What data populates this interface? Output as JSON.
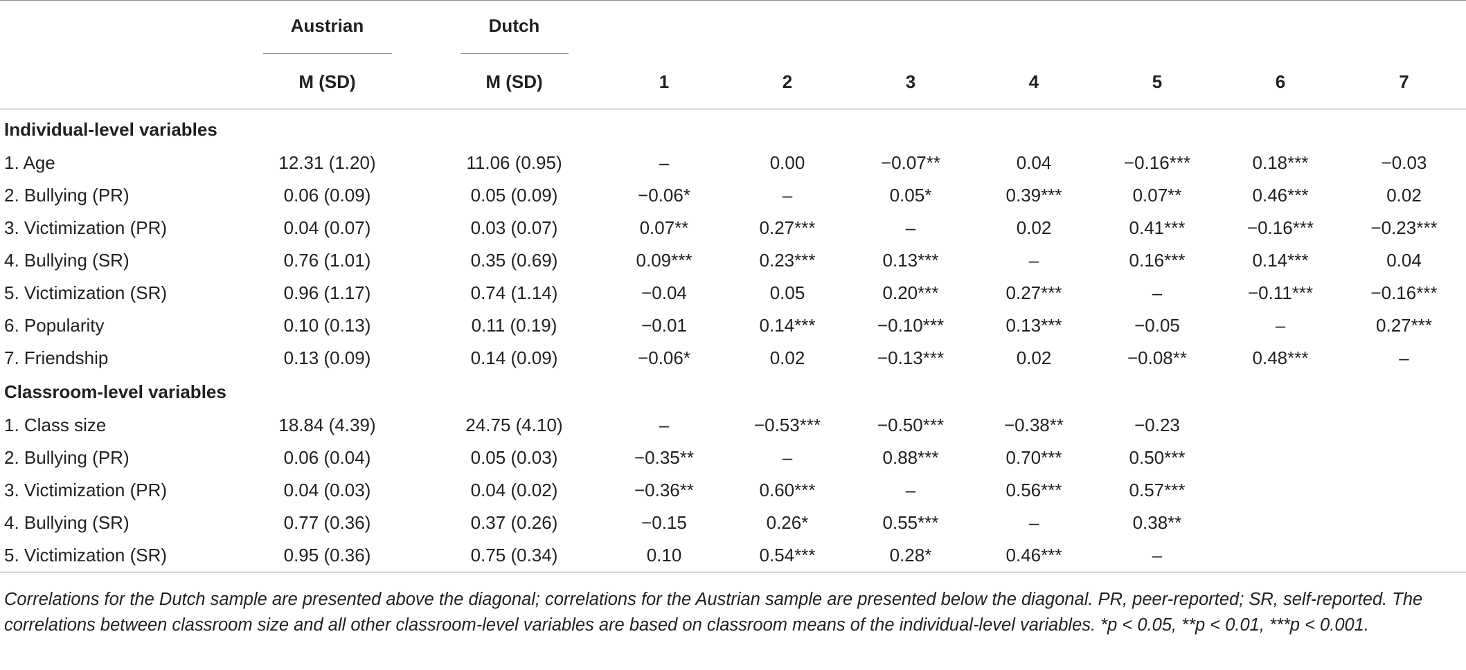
{
  "table": {
    "group_headers": {
      "austrian": "Austrian",
      "dutch": "Dutch"
    },
    "sub_headers": {
      "austrian": "M (SD)",
      "dutch": "M (SD)",
      "cols": [
        "1",
        "2",
        "3",
        "4",
        "5",
        "6",
        "7"
      ]
    },
    "sections": [
      {
        "title": "Individual-level variables",
        "rows": [
          {
            "label": "1. Age",
            "austrian": "12.31 (1.20)",
            "dutch": "11.06 (0.95)",
            "cells": [
              "–",
              "0.00",
              "−0.07**",
              "0.04",
              "−0.16***",
              "0.18***",
              "−0.03"
            ]
          },
          {
            "label": "2. Bullying (PR)",
            "austrian": "0.06 (0.09)",
            "dutch": "0.05 (0.09)",
            "cells": [
              "−0.06*",
              "–",
              "0.05*",
              "0.39***",
              "0.07**",
              "0.46***",
              "0.02"
            ]
          },
          {
            "label": "3. Victimization (PR)",
            "austrian": "0.04 (0.07)",
            "dutch": "0.03 (0.07)",
            "cells": [
              "0.07**",
              "0.27***",
              "–",
              "0.02",
              "0.41***",
              "−0.16***",
              "−0.23***"
            ]
          },
          {
            "label": "4. Bullying (SR)",
            "austrian": "0.76 (1.01)",
            "dutch": "0.35 (0.69)",
            "cells": [
              "0.09***",
              "0.23***",
              "0.13***",
              "–",
              "0.16***",
              "0.14***",
              "0.04"
            ]
          },
          {
            "label": "5. Victimization (SR)",
            "austrian": "0.96 (1.17)",
            "dutch": "0.74 (1.14)",
            "cells": [
              "−0.04",
              "0.05",
              "0.20***",
              "0.27***",
              "–",
              "−0.11***",
              "−0.16***"
            ]
          },
          {
            "label": "6. Popularity",
            "austrian": "0.10 (0.13)",
            "dutch": "0.11 (0.19)",
            "cells": [
              "−0.01",
              "0.14***",
              "−0.10***",
              "0.13***",
              "−0.05",
              "–",
              "0.27***"
            ]
          },
          {
            "label": "7. Friendship",
            "austrian": "0.13 (0.09)",
            "dutch": "0.14 (0.09)",
            "cells": [
              "−0.06*",
              "0.02",
              "−0.13***",
              "0.02",
              "−0.08**",
              "0.48***",
              "–"
            ]
          }
        ]
      },
      {
        "title": "Classroom-level variables",
        "rows": [
          {
            "label": "1. Class size",
            "austrian": "18.84 (4.39)",
            "dutch": "24.75 (4.10)",
            "cells": [
              "–",
              "−0.53***",
              "−0.50***",
              "−0.38**",
              "−0.23",
              "",
              ""
            ]
          },
          {
            "label": "2. Bullying (PR)",
            "austrian": "0.06 (0.04)",
            "dutch": "0.05 (0.03)",
            "cells": [
              "−0.35**",
              "–",
              "0.88***",
              "0.70***",
              "0.50***",
              "",
              ""
            ]
          },
          {
            "label": "3. Victimization (PR)",
            "austrian": "0.04 (0.03)",
            "dutch": "0.04 (0.02)",
            "cells": [
              "−0.36**",
              "0.60***",
              "–",
              "0.56***",
              "0.57***",
              "",
              ""
            ]
          },
          {
            "label": "4. Bullying (SR)",
            "austrian": "0.77 (0.36)",
            "dutch": "0.37 (0.26)",
            "cells": [
              "−0.15",
              "0.26*",
              "0.55***",
              "–",
              "0.38**",
              "",
              ""
            ]
          },
          {
            "label": "5. Victimization (SR)",
            "austrian": "0.95 (0.36)",
            "dutch": "0.75 (0.34)",
            "cells": [
              "0.10",
              "0.54***",
              "0.28*",
              "0.46***",
              "–",
              "",
              ""
            ]
          }
        ]
      }
    ],
    "note": "Correlations for the Dutch sample are presented above the diagonal; correlations for the Austrian sample are presented below the diagonal. PR, peer-reported; SR, self-reported. The correlations between classroom size and all other classroom-level variables are based on classroom means of the individual-level variables. *p < 0.05, **p < 0.01, ***p < 0.001."
  }
}
